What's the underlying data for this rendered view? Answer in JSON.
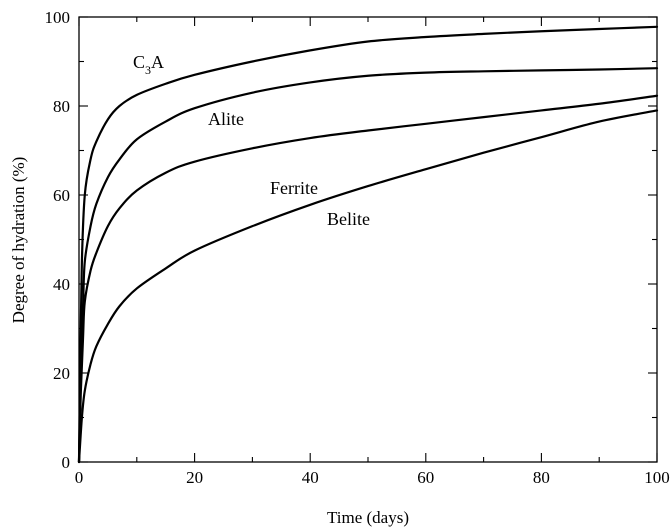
{
  "chart_data": {
    "type": "line",
    "title": "",
    "xlabel": "Time (days)",
    "ylabel": "Degree of hydration (%)",
    "xlim": [
      0,
      100
    ],
    "ylim": [
      0,
      100
    ],
    "xticks": [
      0,
      20,
      40,
      60,
      80,
      100
    ],
    "yticks": [
      0,
      20,
      40,
      60,
      80,
      100
    ],
    "grid": false,
    "legend": "none",
    "series": [
      {
        "name": "C3A",
        "label_main": "C",
        "label_sub": "3",
        "label_tail": "A",
        "points": [
          [
            0,
            0
          ],
          [
            0.2,
            20
          ],
          [
            0.5,
            45
          ],
          [
            1,
            60
          ],
          [
            2,
            68
          ],
          [
            3,
            72
          ],
          [
            5,
            77
          ],
          [
            7,
            80
          ],
          [
            10,
            82.5
          ],
          [
            15,
            85
          ],
          [
            20,
            87
          ],
          [
            30,
            90
          ],
          [
            40,
            92.5
          ],
          [
            50,
            94.5
          ],
          [
            60,
            95.5
          ],
          [
            70,
            96.2
          ],
          [
            80,
            96.8
          ],
          [
            90,
            97.3
          ],
          [
            100,
            97.8
          ]
        ]
      },
      {
        "name": "Alite",
        "points": [
          [
            0,
            0
          ],
          [
            0.3,
            20
          ],
          [
            0.7,
            35
          ],
          [
            1,
            45
          ],
          [
            2,
            53
          ],
          [
            3,
            58
          ],
          [
            5,
            64
          ],
          [
            7,
            68
          ],
          [
            10,
            72.5
          ],
          [
            15,
            76.5
          ],
          [
            20,
            79.5
          ],
          [
            30,
            83
          ],
          [
            40,
            85.3
          ],
          [
            50,
            86.8
          ],
          [
            60,
            87.5
          ],
          [
            70,
            87.8
          ],
          [
            80,
            88
          ],
          [
            90,
            88.2
          ],
          [
            100,
            88.5
          ]
        ]
      },
      {
        "name": "Ferrite",
        "points": [
          [
            0,
            0
          ],
          [
            0.3,
            15
          ],
          [
            0.7,
            28
          ],
          [
            1,
            36
          ],
          [
            2,
            43
          ],
          [
            3,
            47
          ],
          [
            5,
            53
          ],
          [
            7,
            57
          ],
          [
            10,
            61
          ],
          [
            15,
            65
          ],
          [
            20,
            67.5
          ],
          [
            30,
            70.5
          ],
          [
            40,
            72.8
          ],
          [
            50,
            74.5
          ],
          [
            60,
            76
          ],
          [
            70,
            77.5
          ],
          [
            80,
            79
          ],
          [
            90,
            80.5
          ],
          [
            100,
            82.3
          ]
        ]
      },
      {
        "name": "Belite",
        "points": [
          [
            0,
            0
          ],
          [
            0.5,
            10
          ],
          [
            1,
            16
          ],
          [
            2,
            22
          ],
          [
            3,
            26
          ],
          [
            5,
            31
          ],
          [
            7,
            35
          ],
          [
            10,
            39
          ],
          [
            15,
            43.5
          ],
          [
            20,
            47.5
          ],
          [
            30,
            53
          ],
          [
            40,
            57.8
          ],
          [
            50,
            62
          ],
          [
            60,
            65.8
          ],
          [
            70,
            69.5
          ],
          [
            80,
            73
          ],
          [
            90,
            76.5
          ],
          [
            100,
            79
          ]
        ]
      }
    ]
  },
  "colors": {
    "line": "#000000",
    "background": "#ffffff"
  }
}
